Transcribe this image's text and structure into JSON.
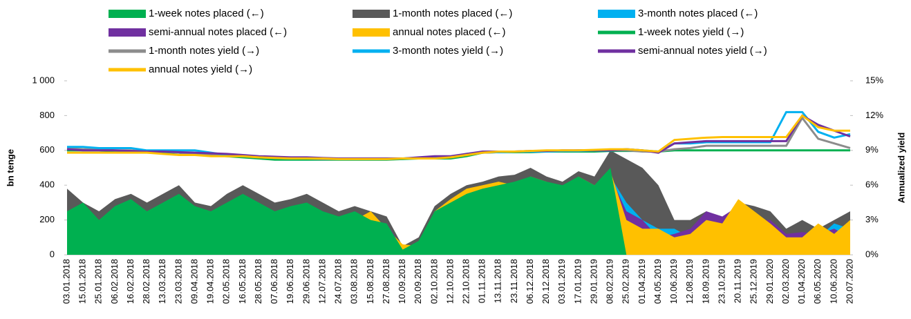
{
  "chart_data": {
    "type": "combo",
    "categories": [
      "03.01.2018",
      "15.01.2018",
      "25.01.2018",
      "06.02.2018",
      "16.02.2018",
      "28.02.2018",
      "13.03.2018",
      "23.03.2018",
      "09.04.2018",
      "19.04.2018",
      "02.05.2018",
      "16.05.2018",
      "28.05.2018",
      "07.06.2018",
      "19.06.2018",
      "29.06.2018",
      "12.07.2018",
      "24.07.2018",
      "03.08.2018",
      "15.08.2018",
      "27.08.2018",
      "10.09.2018",
      "20.09.2018",
      "02.10.2018",
      "12.10.2018",
      "22.10.2018",
      "01.11.2018",
      "13.11.2018",
      "23.11.2018",
      "06.12.2018",
      "20.12.2018",
      "03.01.2019",
      "17.01.2019",
      "29.01.2019",
      "08.02.2019",
      "25.02.2019",
      "01.04.2019",
      "04.05.2019",
      "10.06.2019",
      "12.08.2019",
      "18.09.2019",
      "23.10.2019",
      "20.11.2019",
      "25.12.2019",
      "29.01.2020",
      "02.03.2020",
      "01.04.2020",
      "06.05.2020",
      "10.06.2020",
      "20.07.2020"
    ],
    "ylabel": "bn tenge",
    "y2label": "Annualized yield",
    "ylim": [
      0,
      1000
    ],
    "yticks": [
      0,
      200,
      400,
      600,
      800,
      {
        "value": 1000,
        "label": "1 000"
      }
    ],
    "y2lim": [
      0,
      15
    ],
    "y2ticks": [
      {
        "value": 0,
        "label": "0%"
      },
      {
        "value": 3,
        "label": "3%"
      },
      {
        "value": 6,
        "label": "6%"
      },
      {
        "value": 9,
        "label": "9%"
      },
      {
        "value": 12,
        "label": "12%"
      },
      {
        "value": 15,
        "label": "15%"
      }
    ],
    "series": [
      {
        "name": "1-week notes placed (←)",
        "type": "area",
        "color": "#00b050",
        "values": [
          250,
          300,
          200,
          280,
          320,
          250,
          300,
          350,
          280,
          250,
          300,
          350,
          300,
          250,
          280,
          300,
          250,
          220,
          250,
          200,
          180,
          30,
          80,
          250,
          300,
          350,
          380,
          400,
          420,
          450,
          420,
          400,
          450,
          400,
          500,
          0,
          0,
          0,
          0,
          0,
          0,
          0,
          0,
          0,
          0,
          0,
          0,
          0,
          0,
          0
        ]
      },
      {
        "name": "1-month notes placed (←)",
        "type": "area",
        "color": "#595959",
        "values": [
          380,
          300,
          250,
          320,
          350,
          300,
          350,
          400,
          300,
          280,
          350,
          400,
          350,
          300,
          320,
          350,
          300,
          250,
          280,
          250,
          220,
          50,
          100,
          280,
          350,
          400,
          420,
          450,
          460,
          500,
          450,
          420,
          480,
          450,
          600,
          550,
          500,
          400,
          200,
          200,
          250,
          200,
          300,
          280,
          250,
          150,
          200,
          150,
          200,
          250
        ]
      },
      {
        "name": "3-month notes placed (←)",
        "type": "area",
        "color": "#00b0f0",
        "values": [
          220,
          150,
          200,
          250,
          200,
          180,
          250,
          200,
          220,
          200,
          250,
          200,
          220,
          180,
          200,
          250,
          200,
          180,
          200,
          220,
          150,
          20,
          60,
          200,
          300,
          350,
          350,
          380,
          400,
          420,
          380,
          350,
          400,
          350,
          450,
          300,
          200,
          150,
          150,
          100,
          200,
          180,
          250,
          200,
          150,
          100,
          120,
          100,
          180,
          150
        ]
      },
      {
        "name": "semi-annual notes placed (←)",
        "type": "area",
        "color": "#7030a0",
        "values": [
          200,
          250,
          150,
          200,
          280,
          200,
          250,
          280,
          200,
          220,
          250,
          300,
          250,
          200,
          220,
          280,
          220,
          200,
          220,
          200,
          180,
          40,
          70,
          220,
          300,
          380,
          350,
          400,
          380,
          420,
          380,
          350,
          400,
          380,
          450,
          250,
          200,
          100,
          120,
          150,
          250,
          220,
          280,
          200,
          200,
          120,
          130,
          120,
          150,
          100
        ]
      },
      {
        "name": "annual notes placed (←)",
        "type": "area",
        "color": "#ffc000",
        "values": [
          150,
          200,
          180,
          220,
          200,
          180,
          200,
          250,
          180,
          200,
          220,
          250,
          200,
          180,
          200,
          230,
          200,
          180,
          200,
          250,
          150,
          60,
          50,
          250,
          320,
          380,
          400,
          420,
          400,
          450,
          420,
          380,
          450,
          400,
          480,
          200,
          150,
          150,
          100,
          120,
          200,
          180,
          320,
          250,
          180,
          100,
          100,
          180,
          120,
          200
        ]
      },
      {
        "name": "1-week notes yield (→)",
        "type": "line",
        "axis": "y2",
        "color": "#00b050",
        "values": [
          9.0,
          9.0,
          9.0,
          8.9,
          8.9,
          8.9,
          8.8,
          8.8,
          8.6,
          8.6,
          8.5,
          8.4,
          8.3,
          8.2,
          8.2,
          8.2,
          8.2,
          8.2,
          8.2,
          8.2,
          8.2,
          8.25,
          8.3,
          8.3,
          8.3,
          8.5,
          8.8,
          8.85,
          8.85,
          8.85,
          8.9,
          8.9,
          8.9,
          8.9,
          8.95,
          8.95,
          8.95,
          8.9,
          9.0,
          9.0,
          9.0,
          9.0,
          9.0,
          9.0,
          9.0,
          9.0,
          9.0,
          9.0,
          9.0,
          9.0
        ]
      },
      {
        "name": "1-month notes yield (→)",
        "type": "line",
        "axis": "y2",
        "color": "#8c8c8c",
        "values": [
          9.2,
          9.1,
          9.1,
          9.0,
          9.0,
          8.9,
          8.9,
          8.8,
          8.7,
          8.6,
          8.6,
          8.5,
          8.4,
          8.35,
          8.3,
          8.3,
          8.25,
          8.25,
          8.25,
          8.25,
          8.25,
          8.3,
          8.3,
          8.35,
          8.4,
          8.6,
          8.8,
          8.85,
          8.9,
          8.9,
          8.95,
          8.95,
          9.0,
          9.0,
          9.0,
          9.0,
          8.9,
          8.9,
          9.1,
          9.2,
          9.4,
          9.4,
          9.4,
          9.4,
          9.4,
          9.4,
          11.8,
          10.0,
          9.6,
          9.2
        ]
      },
      {
        "name": "3-month notes yield (→)",
        "type": "line",
        "axis": "y2",
        "color": "#00b0f0",
        "values": [
          9.3,
          9.3,
          9.2,
          9.2,
          9.2,
          9.0,
          9.0,
          9.0,
          9.0,
          8.8,
          8.6,
          8.5,
          8.45,
          8.4,
          8.35,
          8.3,
          8.3,
          8.25,
          8.25,
          8.25,
          8.25,
          8.3,
          8.35,
          8.4,
          8.4,
          8.7,
          8.85,
          8.85,
          8.9,
          8.9,
          8.9,
          8.95,
          8.95,
          9.0,
          9.0,
          9.1,
          9.0,
          8.9,
          9.6,
          9.6,
          9.7,
          9.7,
          9.7,
          9.7,
          9.7,
          12.3,
          12.3,
          10.6,
          10.1,
          10.4
        ]
      },
      {
        "name": "semi-annual notes yield (→)",
        "type": "line",
        "axis": "y2",
        "color": "#7030a0",
        "values": [
          9.1,
          9.0,
          9.0,
          9.0,
          8.95,
          8.9,
          8.9,
          8.85,
          8.8,
          8.75,
          8.7,
          8.6,
          8.5,
          8.45,
          8.4,
          8.4,
          8.35,
          8.3,
          8.3,
          8.3,
          8.3,
          8.3,
          8.4,
          8.5,
          8.5,
          8.7,
          8.9,
          8.9,
          8.9,
          8.95,
          8.95,
          9.0,
          9.0,
          9.0,
          9.0,
          9.1,
          9.0,
          8.8,
          9.6,
          9.7,
          9.8,
          9.8,
          9.8,
          9.8,
          9.8,
          9.8,
          12.0,
          11.2,
          10.7,
          10.2
        ]
      },
      {
        "name": "annual notes yield (→)",
        "type": "line",
        "axis": "y2",
        "color": "#ffc000",
        "values": [
          8.8,
          8.8,
          8.8,
          8.8,
          8.8,
          8.8,
          8.7,
          8.6,
          8.6,
          8.5,
          8.5,
          8.5,
          8.4,
          8.35,
          8.3,
          8.3,
          8.3,
          8.25,
          8.25,
          8.25,
          8.25,
          8.3,
          8.3,
          8.3,
          8.4,
          8.6,
          8.8,
          8.9,
          8.9,
          8.95,
          9.0,
          9.0,
          9.0,
          9.05,
          9.1,
          9.1,
          9.0,
          8.9,
          9.9,
          10.0,
          10.1,
          10.15,
          10.15,
          10.15,
          10.15,
          10.15,
          12.0,
          11.0,
          10.7,
          10.7
        ]
      }
    ]
  }
}
